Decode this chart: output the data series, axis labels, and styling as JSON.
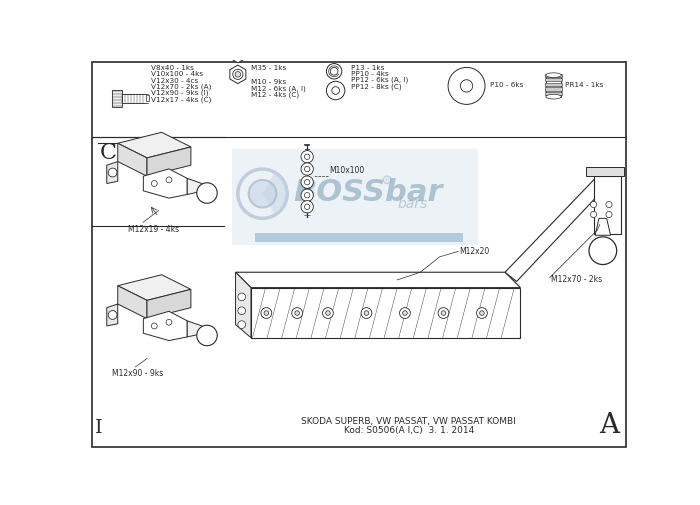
{
  "bg_color": "#ffffff",
  "line_color": "#2a2a2a",
  "gray_light": "#d8d8d8",
  "title_bottom": "SKODA SUPERB, VW PASSAT, VW PASSAT KOMBI",
  "kod_line": "Kod: S0506(A I,C)  3. 1. 2014",
  "label_A": "A",
  "label_C": "C",
  "label_I": "I",
  "parts_bolts_text": [
    "V8x40 - 1ks",
    "V10x100 - 4ks",
    "V12x30 - 4cs",
    "V12x70 - 2ks (A)",
    "V12x90 - 9ks (I)",
    "V12x17 - 4ks (C)"
  ],
  "parts_nuts_text": [
    "M35 - 1ks",
    "M10 - 9ks",
    "M12 - 6ks (A, I)",
    "M12 - 4ks (C)"
  ],
  "parts_washers_text": [
    "P13 - 1ks",
    "PP10 - 4ks",
    "PP12 - 6ks (A, I)",
    "PP12 - 8ks (C)"
  ],
  "parts_other_text": [
    "P10 - 6ks",
    "PR14 - 1ks"
  ],
  "label_m12x19": "M12x19 - 4ks",
  "label_m12x90": "M12x90 - 9ks",
  "label_m10x100": "M10x100",
  "label_m12x20": "M12x20",
  "label_m12x70": "M12x70 - 2ks",
  "watermark_color": "#c5d5e5",
  "watermark_alpha": 0.3
}
